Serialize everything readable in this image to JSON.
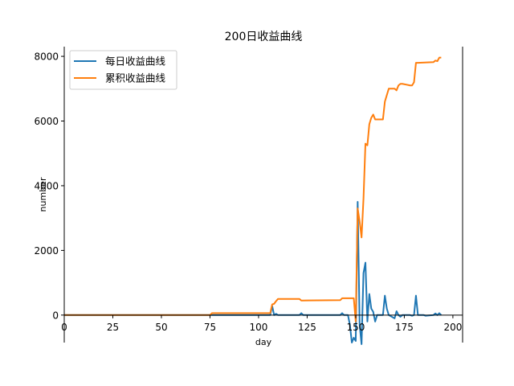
{
  "chart_data": {
    "type": "line",
    "title": "200日收益曲线",
    "xlabel": "day",
    "ylabel": "number",
    "xlim": [
      0,
      205
    ],
    "ylim": [
      -850,
      8300
    ],
    "xticks": [
      0,
      25,
      50,
      75,
      100,
      125,
      150,
      175,
      200
    ],
    "yticks": [
      0,
      2000,
      4000,
      6000,
      8000
    ],
    "legend_position": "top-left",
    "series": [
      {
        "name": "每日收益曲线",
        "color": "#1f77b4",
        "points": [
          [
            0,
            0
          ],
          [
            106,
            0
          ],
          [
            107,
            280
          ],
          [
            108,
            0
          ],
          [
            109,
            40
          ],
          [
            110,
            0
          ],
          [
            121,
            0
          ],
          [
            122,
            60
          ],
          [
            123,
            0
          ],
          [
            142,
            0
          ],
          [
            143,
            60
          ],
          [
            144,
            0
          ],
          [
            146,
            0
          ],
          [
            147,
            -300
          ],
          [
            148,
            -850
          ],
          [
            149,
            -700
          ],
          [
            150,
            -800
          ],
          [
            151,
            3500
          ],
          [
            152,
            -300
          ],
          [
            153,
            -900
          ],
          [
            154,
            1300
          ],
          [
            155,
            1620
          ],
          [
            156,
            -200
          ],
          [
            157,
            650
          ],
          [
            158,
            200
          ],
          [
            159,
            100
          ],
          [
            160,
            -200
          ],
          [
            161,
            0
          ],
          [
            164,
            0
          ],
          [
            165,
            600
          ],
          [
            166,
            200
          ],
          [
            167,
            0
          ],
          [
            170,
            -100
          ],
          [
            171,
            120
          ],
          [
            172,
            0
          ],
          [
            173,
            -50
          ],
          [
            174,
            0
          ],
          [
            178,
            0
          ],
          [
            179,
            -20
          ],
          [
            180,
            0
          ],
          [
            181,
            600
          ],
          [
            182,
            0
          ],
          [
            185,
            0
          ],
          [
            186,
            -20
          ],
          [
            190,
            0
          ],
          [
            191,
            50
          ],
          [
            192,
            0
          ],
          [
            193,
            60
          ],
          [
            194,
            0
          ]
        ]
      },
      {
        "name": "累积收益曲线",
        "color": "#ff7f0e",
        "points": [
          [
            0,
            0
          ],
          [
            75,
            0
          ],
          [
            76,
            60
          ],
          [
            106,
            60
          ],
          [
            107,
            330
          ],
          [
            108,
            350
          ],
          [
            109,
            430
          ],
          [
            110,
            500
          ],
          [
            121,
            500
          ],
          [
            122,
            450
          ],
          [
            142,
            460
          ],
          [
            143,
            520
          ],
          [
            149,
            520
          ],
          [
            150,
            -200
          ],
          [
            151,
            3300
          ],
          [
            152,
            2900
          ],
          [
            153,
            2400
          ],
          [
            154,
            3600
          ],
          [
            155,
            5300
          ],
          [
            156,
            5250
          ],
          [
            157,
            5900
          ],
          [
            158,
            6100
          ],
          [
            159,
            6200
          ],
          [
            160,
            6050
          ],
          [
            164,
            6050
          ],
          [
            165,
            6600
          ],
          [
            166,
            6800
          ],
          [
            167,
            7000
          ],
          [
            170,
            7000
          ],
          [
            171,
            6950
          ],
          [
            172,
            7100
          ],
          [
            173,
            7150
          ],
          [
            174,
            7150
          ],
          [
            178,
            7100
          ],
          [
            179,
            7100
          ],
          [
            180,
            7200
          ],
          [
            181,
            7800
          ],
          [
            182,
            7800
          ],
          [
            190,
            7820
          ],
          [
            191,
            7870
          ],
          [
            192,
            7850
          ],
          [
            193,
            7960
          ],
          [
            194,
            7960
          ]
        ]
      }
    ]
  }
}
